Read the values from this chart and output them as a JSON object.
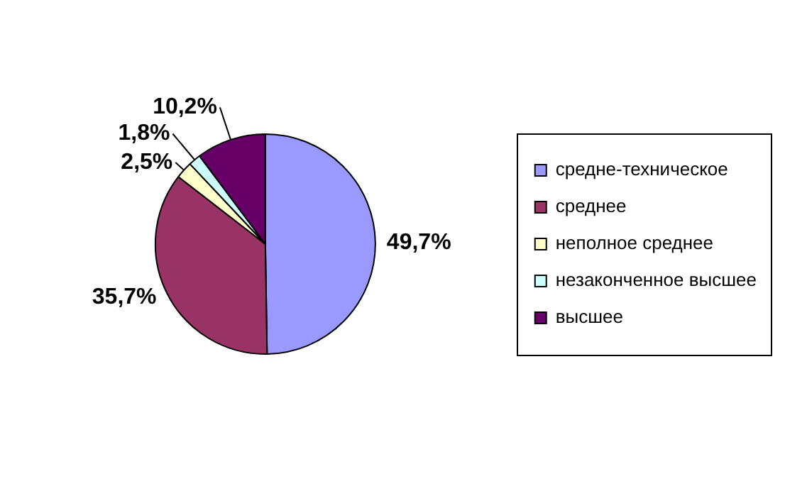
{
  "chart_data": {
    "type": "pie",
    "categories": [
      "средне-техническое",
      "среднее",
      "неполное среднее",
      "незаконченное высшее",
      "высшее"
    ],
    "values": [
      49.7,
      35.7,
      2.5,
      1.8,
      10.2
    ],
    "colors": [
      "#9999ff",
      "#993366",
      "#ffffcc",
      "#ccffff",
      "#660066"
    ],
    "value_labels": [
      "49,7%",
      "35,7%",
      "2,5%",
      "1,8%",
      "10,2%"
    ],
    "legend": "right"
  }
}
